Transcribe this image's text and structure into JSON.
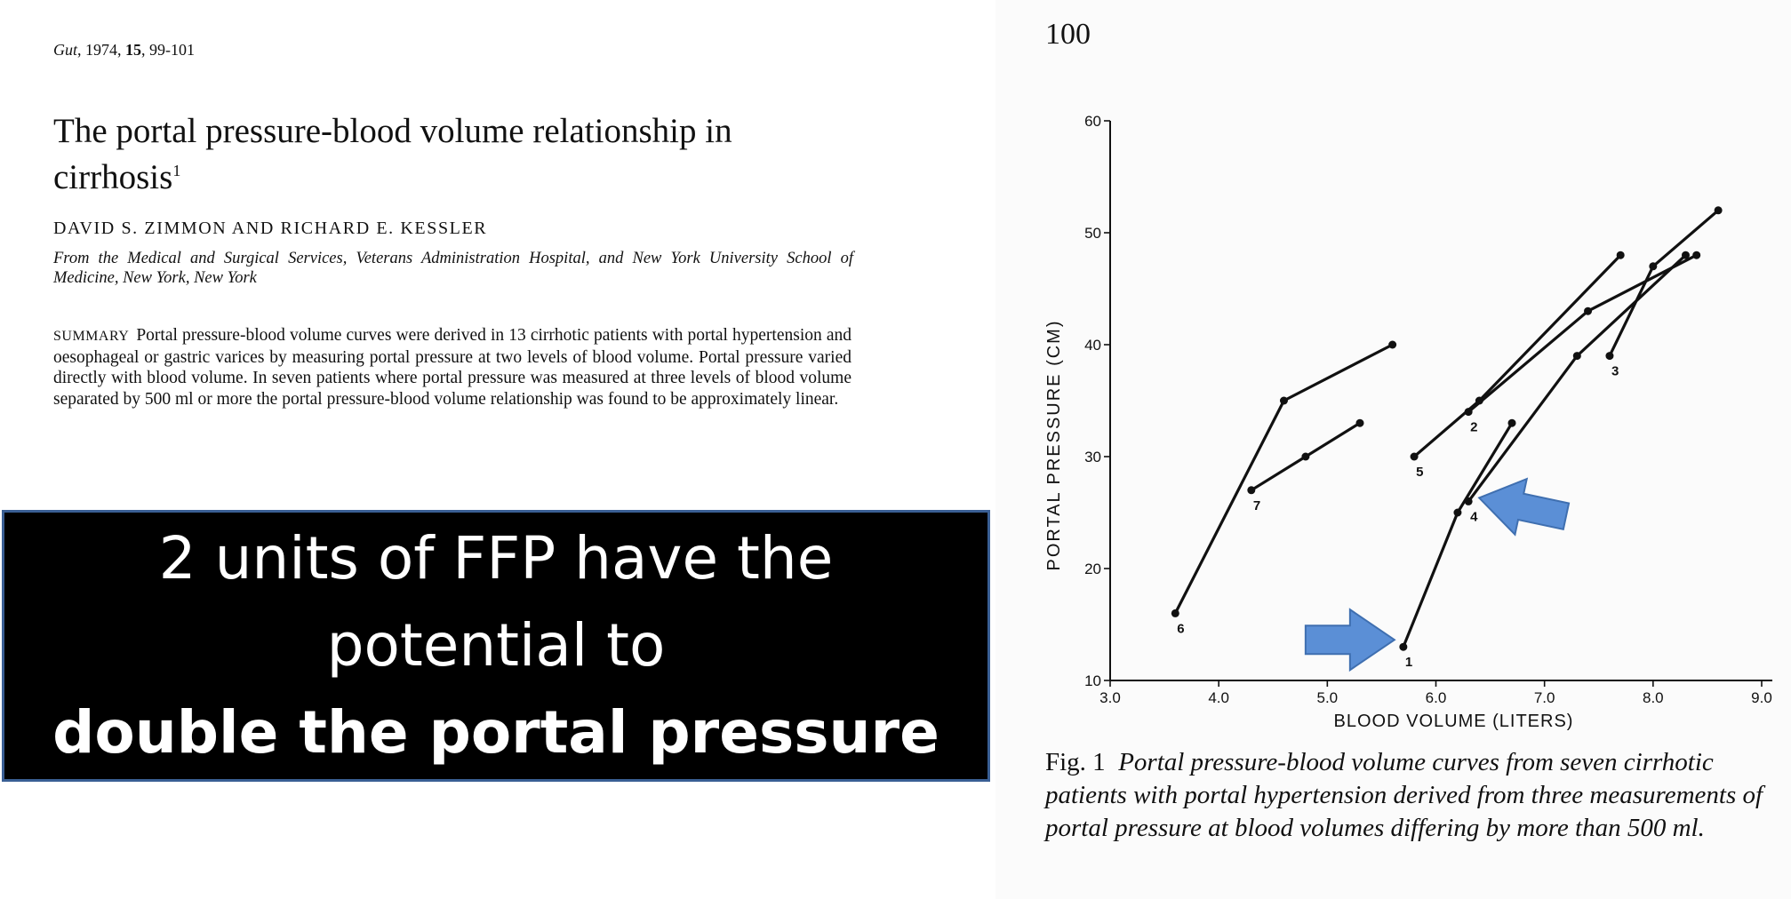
{
  "article": {
    "citation_journal": "Gut",
    "citation_year": ", 1974, ",
    "citation_volume": "15",
    "citation_pages": ", 99-101",
    "title": "The portal pressure-blood volume relationship in cirrhosis",
    "title_footnote": "1",
    "authors": "DAVID S. ZIMMON AND RICHARD E. KESSLER",
    "affiliation": "From the Medical and Surgical Services, Veterans Administration Hospital, and New York University School of Medicine, New York, New York",
    "summary_label": "SUMMARY",
    "summary_text": "Portal pressure-blood volume curves were derived in 13 cirrhotic patients with portal hypertension and oesophageal or gastric varices by measuring portal pressure at two levels of blood volume. Portal pressure varied directly with blood volume. In seven patients where portal pressure was measured at three levels of blood volume separated by 500 ml or more the portal pressure-blood volume relationship was found to be approximately linear."
  },
  "callout": {
    "line1": "2 units of FFP have the",
    "line2": "potential to",
    "line3": "double the portal pressure"
  },
  "figure": {
    "page_number": "100",
    "caption_label": "Fig. 1",
    "caption_text": "Portal pressure-blood volume curves from seven cirrhotic patients with portal hypertension derived from three measurements of portal pressure at blood volumes differing by more than 500 ml."
  },
  "chart_data": {
    "type": "line",
    "xlabel": "BLOOD VOLUME (LITERS)",
    "ylabel": "PORTAL PRESSURE (CM)",
    "xlim": [
      3.0,
      9.0
    ],
    "ylim": [
      10,
      60
    ],
    "xticks": [
      "3.0",
      "4.0",
      "5.0",
      "6.0",
      "7.0",
      "8.0",
      "9.0"
    ],
    "yticks": [
      "10",
      "20",
      "30",
      "40",
      "50",
      "60"
    ],
    "series": [
      {
        "name": "6",
        "points": [
          [
            3.6,
            16
          ],
          [
            4.6,
            35
          ],
          [
            5.6,
            40
          ]
        ]
      },
      {
        "name": "7",
        "points": [
          [
            4.3,
            27
          ],
          [
            4.8,
            30
          ],
          [
            5.3,
            33
          ]
        ]
      },
      {
        "name": "1",
        "points": [
          [
            5.7,
            13
          ],
          [
            6.2,
            25
          ],
          [
            6.7,
            33
          ]
        ]
      },
      {
        "name": "4",
        "points": [
          [
            6.3,
            26
          ],
          [
            7.3,
            39
          ],
          [
            8.3,
            48
          ]
        ]
      },
      {
        "name": "5",
        "points": [
          [
            5.8,
            30
          ],
          [
            6.4,
            35
          ],
          [
            7.7,
            48
          ]
        ]
      },
      {
        "name": "2",
        "points": [
          [
            6.3,
            34
          ],
          [
            7.4,
            43
          ],
          [
            8.4,
            48
          ]
        ]
      },
      {
        "name": "3",
        "points": [
          [
            7.6,
            39
          ],
          [
            8.0,
            47
          ],
          [
            8.6,
            52
          ]
        ]
      }
    ],
    "series_labels": [
      {
        "text": "6",
        "x": 3.6,
        "y": 16
      },
      {
        "text": "7",
        "x": 4.3,
        "y": 27
      },
      {
        "text": "1",
        "x": 5.7,
        "y": 13
      },
      {
        "text": "4",
        "x": 6.3,
        "y": 26
      },
      {
        "text": "5",
        "x": 5.8,
        "y": 30
      },
      {
        "text": "2",
        "x": 6.3,
        "y": 34
      },
      {
        "text": "3",
        "x": 7.6,
        "y": 39
      }
    ],
    "annotation_arrows": [
      {
        "target": "series 1 start",
        "x": 5.7,
        "y": 13
      },
      {
        "target": "series 1/4 junction",
        "x": 6.3,
        "y": 26
      }
    ],
    "arrow_color": "#5b8fd6",
    "grid": false
  }
}
